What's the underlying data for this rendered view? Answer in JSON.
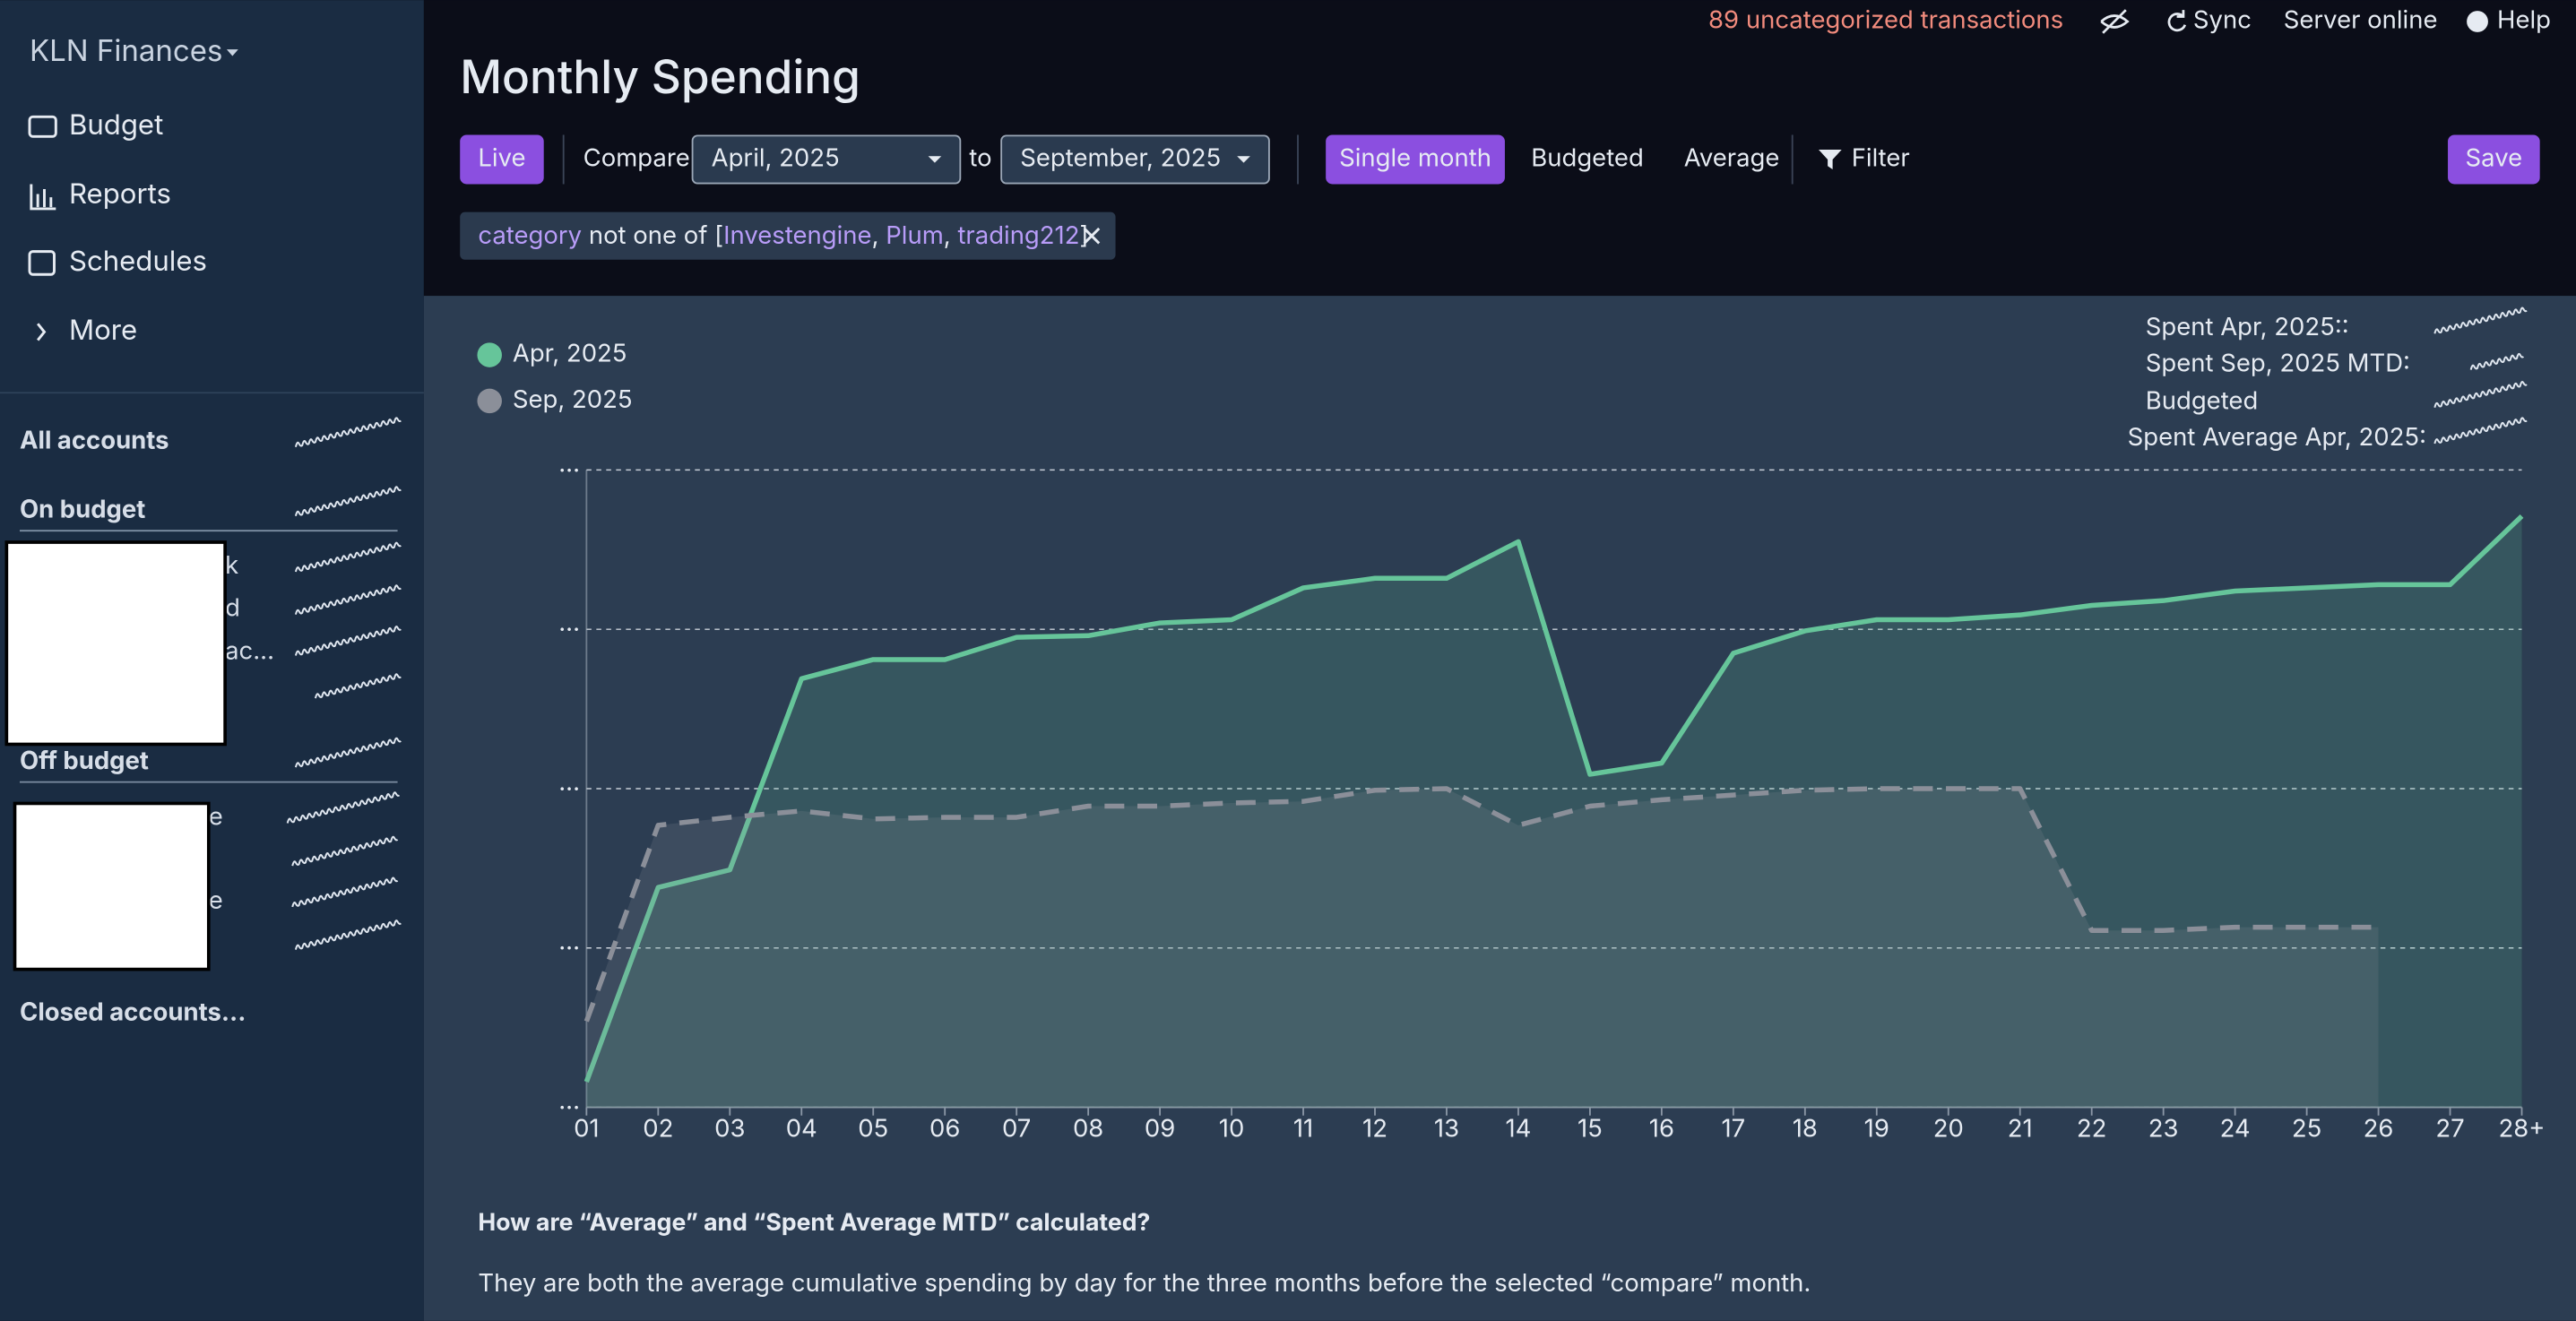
{
  "sidebar": {
    "budget_name": "KLN Finances",
    "nav": [
      "Budget",
      "Reports",
      "Schedules",
      "More"
    ],
    "all_accounts": "All accounts",
    "on_budget": "On budget",
    "on_budget_accounts": [
      "k",
      "d",
      "ac...",
      ""
    ],
    "off_budget": "Off budget",
    "off_budget_accounts": [
      "e",
      "",
      "e",
      ""
    ],
    "closed_accounts": "Closed accounts..."
  },
  "top_bar": {
    "uncategorized": "89 uncategorized transactions",
    "sync": "Sync",
    "server": "Server online",
    "help": "Help"
  },
  "header": {
    "title": "Monthly Spending",
    "live": "Live",
    "compare": "Compare",
    "from": "April, 2025",
    "to_word": "to",
    "to": "September, 2025",
    "single_month": "Single month",
    "budgeted": "Budgeted",
    "average": "Average",
    "filter": "Filter",
    "save": "Save"
  },
  "filter_chip": {
    "field": "category",
    "op": "not one of [",
    "values": [
      "Investengine",
      "Plum",
      "trading212"
    ],
    "sep": ", ",
    "close": "]"
  },
  "summary": [
    "Spent Apr, 2025::",
    "Spent Sep, 2025 MTD:",
    "Budgeted",
    "Spent Average Apr, 2025:"
  ],
  "chart_data": {
    "type": "area",
    "categories": [
      "01",
      "02",
      "03",
      "04",
      "05",
      "06",
      "07",
      "08",
      "09",
      "10",
      "11",
      "12",
      "13",
      "14",
      "15",
      "16",
      "17",
      "18",
      "19",
      "20",
      "21",
      "22",
      "23",
      "24",
      "25",
      "26",
      "27",
      "28+"
    ],
    "series": [
      {
        "name": "Apr, 2025",
        "color": "#66c59a",
        "line_style": "solid",
        "values": [
          0.16,
          1.38,
          1.49,
          2.69,
          2.81,
          2.81,
          2.95,
          2.96,
          3.04,
          3.06,
          3.26,
          3.32,
          3.32,
          3.55,
          2.09,
          2.16,
          2.85,
          2.99,
          3.06,
          3.06,
          3.09,
          3.15,
          3.18,
          3.24,
          3.26,
          3.28,
          3.28,
          3.71
        ]
      },
      {
        "name": "Sep, 2025",
        "color": "#8b8f99",
        "line_style": "dashed",
        "values": [
          0.54,
          1.77,
          1.82,
          1.86,
          1.81,
          1.82,
          1.82,
          1.89,
          1.89,
          1.91,
          1.92,
          1.99,
          2.0,
          1.77,
          1.89,
          1.93,
          1.96,
          1.99,
          2.0,
          2.0,
          2.0,
          1.11,
          1.11,
          1.13,
          1.13,
          1.13,
          null,
          null
        ]
      }
    ],
    "ylim": [
      0,
      4
    ],
    "yticks": [
      {
        "value": 0,
        "label": "..."
      },
      {
        "value": 1,
        "label": "..."
      },
      {
        "value": 2,
        "label": "..."
      },
      {
        "value": 3,
        "label": "..."
      },
      {
        "value": 4,
        "label": "..."
      }
    ],
    "grid": true
  },
  "footer": {
    "question": "How are “Average” and “Spent Average MTD” calculated?",
    "answer": "They are both the average cumulative spending by day for the three months before the selected “compare” month."
  }
}
